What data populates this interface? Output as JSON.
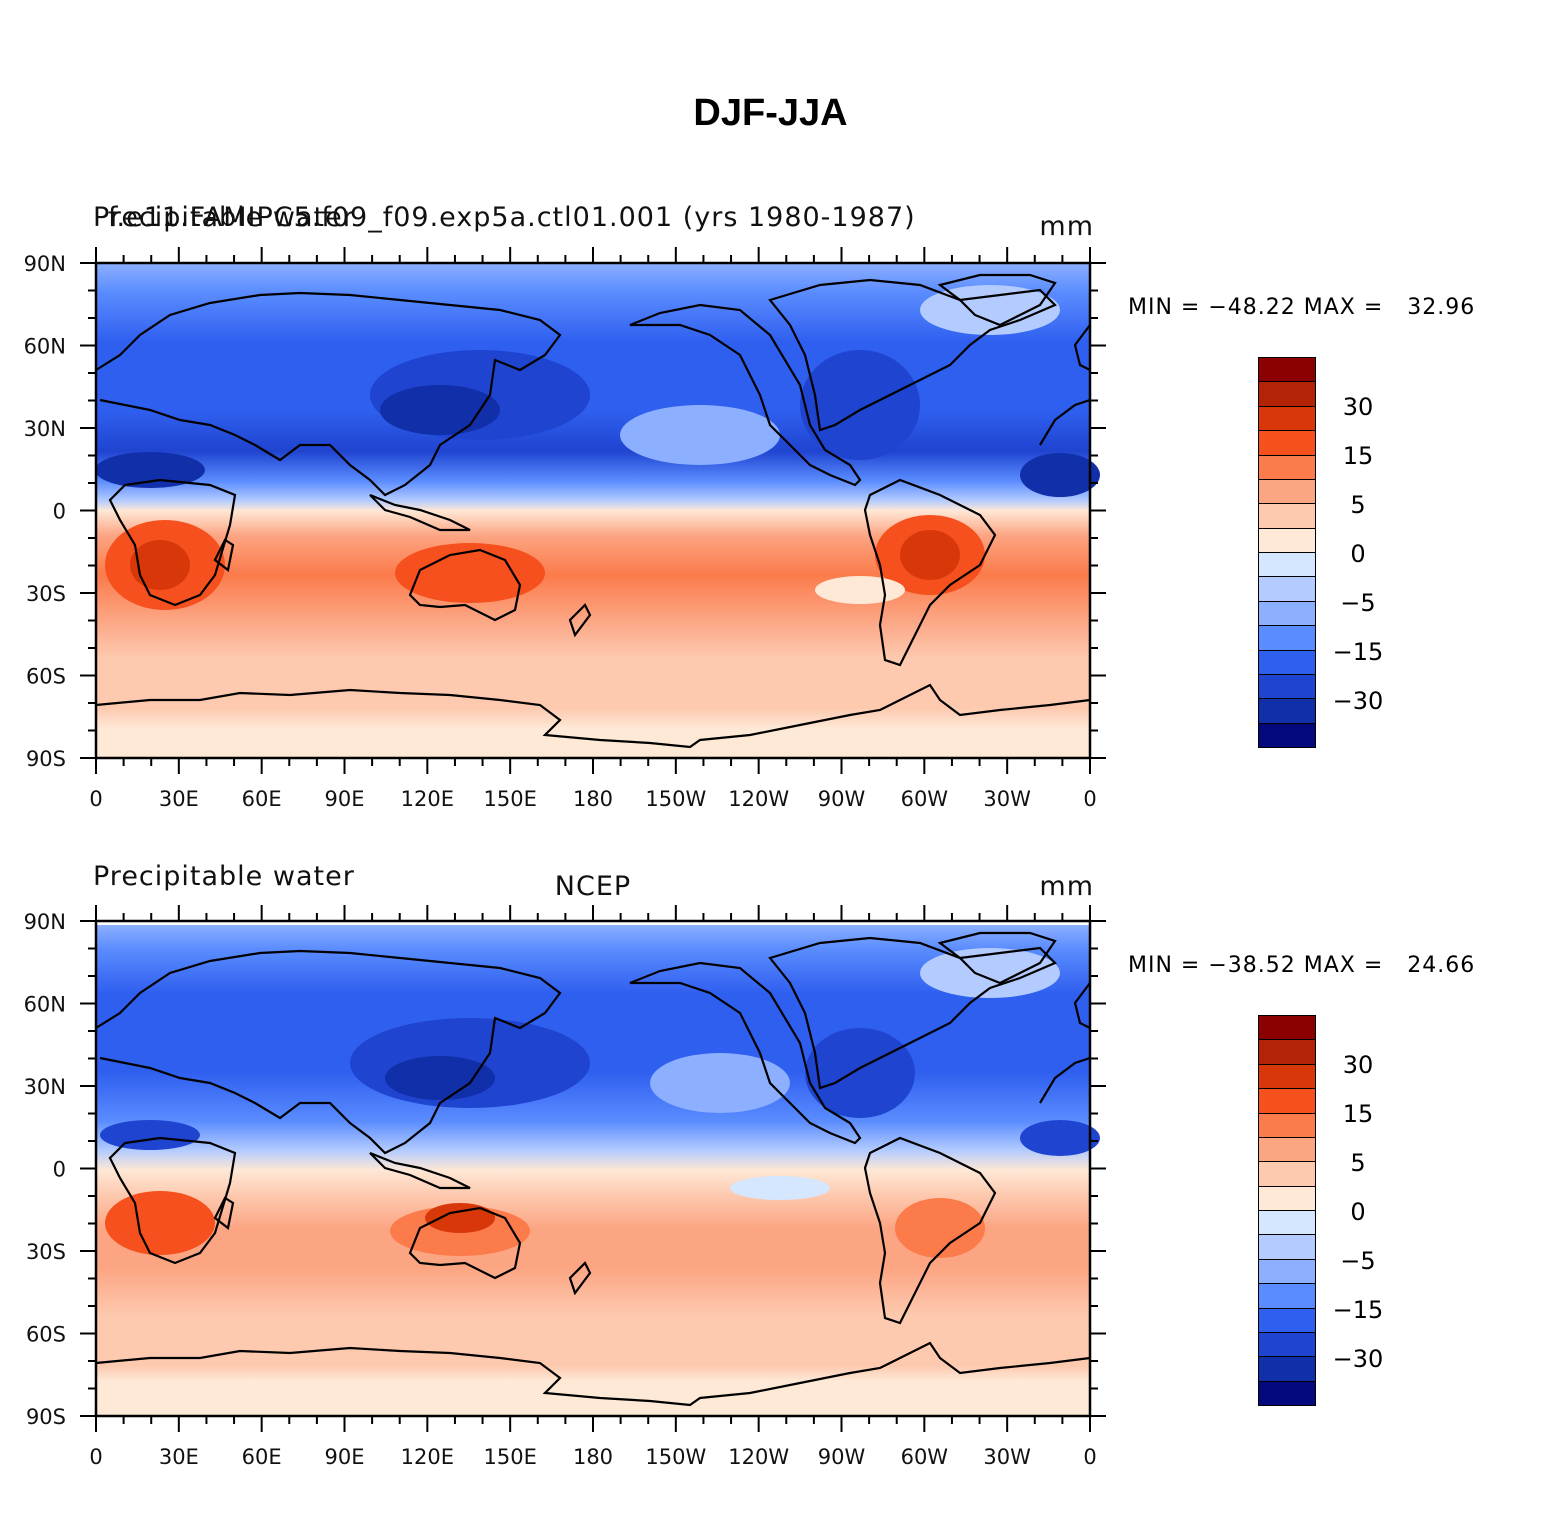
{
  "title": "DJF-JJA",
  "panels": [
    {
      "id": "model",
      "left_label_lines": [
        "Precipitable water",
        "f.e11.FAMIPC5.f09_f09.exp5a.ctl01.001 (yrs 1980-1987)"
      ],
      "center_label": "",
      "units": "mm",
      "min_max": "MIN = −48.22 MAX =   32.96"
    },
    {
      "id": "obs",
      "left_label_lines": [
        "Precipitable water"
      ],
      "center_label": "NCEP",
      "units": "mm",
      "min_max": "MIN = −38.52 MAX =   24.66"
    }
  ],
  "axes": {
    "lat_ticks": [
      "90N",
      "60N",
      "30N",
      "0",
      "30S",
      "60S",
      "90S"
    ],
    "lon_ticks": [
      "0",
      "30E",
      "60E",
      "90E",
      "120E",
      "150E",
      "180",
      "150W",
      "120W",
      "90W",
      "60W",
      "30W",
      "0"
    ]
  },
  "colorbar": {
    "labels": [
      "30",
      "15",
      "5",
      "0",
      "−5",
      "−15",
      "−30"
    ],
    "colors": [
      "#8b0000",
      "#b22405",
      "#d8370a",
      "#f5501e",
      "#fb7b4b",
      "#fca583",
      "#fdcab0",
      "#fee8d6",
      "#d5e7ff",
      "#b3cbff",
      "#8cafff",
      "#5a8cff",
      "#2f5fef",
      "#1f44d0",
      "#112fa8",
      "#03097c"
    ]
  },
  "chart_data": {
    "type": "heatmap",
    "variable": "Precipitable water",
    "units": "mm",
    "season_difference": "DJF-JJA",
    "contour_levels": [
      -40,
      -30,
      -20,
      -15,
      -10,
      -5,
      -2,
      0,
      2,
      5,
      10,
      15,
      20,
      30,
      40
    ],
    "labeled_levels": [
      30,
      15,
      5,
      0,
      -5,
      -15,
      -30
    ],
    "x_range": [
      "0",
      "0"
    ],
    "y_range": [
      "90S",
      "90N"
    ],
    "series": [
      {
        "name": "f.e11.FAMIPC5.f09_f09.exp5a.ctl01.001 (yrs 1980-1987)",
        "min": -48.22,
        "max": 32.96
      },
      {
        "name": "NCEP",
        "min": -38.52,
        "max": 24.66
      }
    ]
  }
}
